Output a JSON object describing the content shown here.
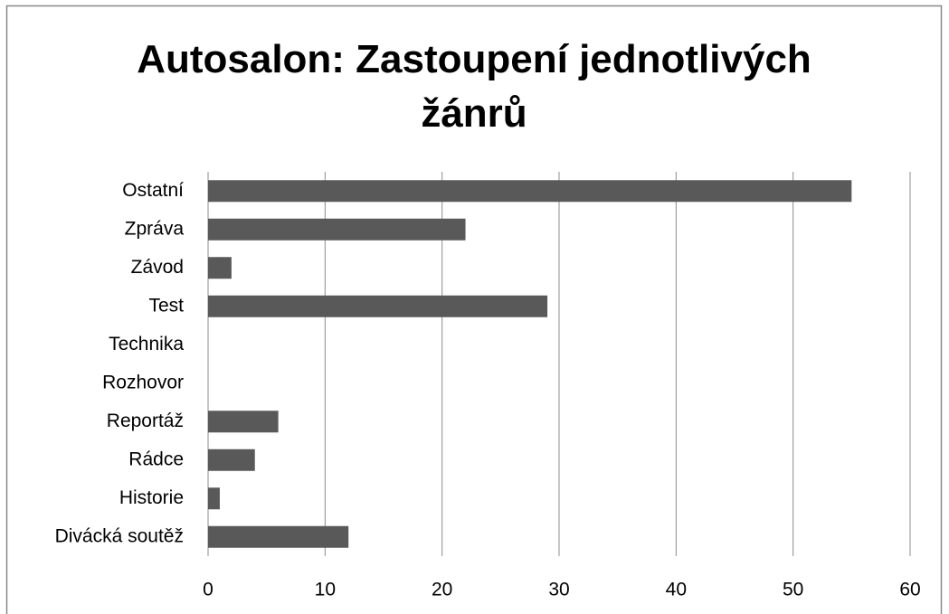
{
  "chart_data": {
    "type": "barh",
    "title": "Autosalon: Zastoupení jednotlivých žánrů",
    "categories": [
      "Ostatní",
      "Zpráva",
      "Závod",
      "Test",
      "Technika",
      "Rozhovor",
      "Reportáž",
      "Rádce",
      "Historie",
      "Divácká soutěž"
    ],
    "values": [
      55,
      22,
      2,
      29,
      0,
      0,
      6,
      4,
      1,
      12
    ],
    "color": "#595959",
    "xlim": [
      0,
      60
    ],
    "xticks": [
      0,
      10,
      20,
      30,
      40,
      50,
      60
    ],
    "grid": true
  }
}
